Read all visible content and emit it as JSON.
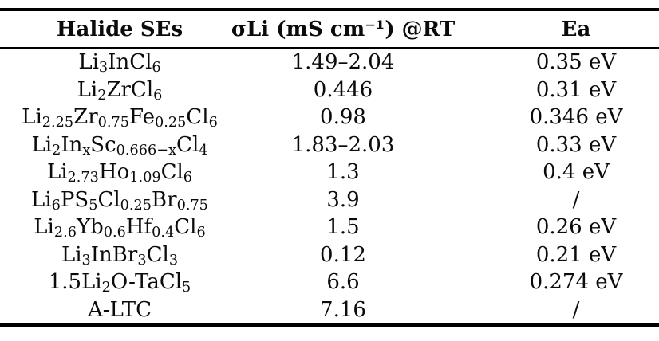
{
  "colors": {
    "background": "#ffffff",
    "text": "#0b0b0b",
    "rule": "#000000"
  },
  "table": {
    "headers": [
      "Halide SEs",
      "σLi (mS cm⁻¹) @RT",
      "Ea"
    ],
    "rows": [
      {
        "formula": [
          [
            "t",
            "Li"
          ],
          [
            "s",
            "3"
          ],
          [
            "t",
            "InCl"
          ],
          [
            "s",
            "6"
          ]
        ],
        "sigma": "1.49–2.04",
        "ea": "0.35 eV"
      },
      {
        "formula": [
          [
            "t",
            "Li"
          ],
          [
            "s",
            "2"
          ],
          [
            "t",
            "ZrCl"
          ],
          [
            "s",
            "6"
          ]
        ],
        "sigma": "0.446",
        "ea": "0.31 eV"
      },
      {
        "formula": [
          [
            "t",
            "Li"
          ],
          [
            "s",
            "2.25"
          ],
          [
            "t",
            "Zr"
          ],
          [
            "s",
            "0.75"
          ],
          [
            "t",
            "Fe"
          ],
          [
            "s",
            "0.25"
          ],
          [
            "t",
            "Cl"
          ],
          [
            "s",
            "6"
          ]
        ],
        "sigma": "0.98",
        "ea": "0.346 eV"
      },
      {
        "formula": [
          [
            "t",
            "Li"
          ],
          [
            "s",
            "2"
          ],
          [
            "t",
            "In"
          ],
          [
            "s",
            "x"
          ],
          [
            "t",
            "Sc"
          ],
          [
            "s",
            "0.666−x"
          ],
          [
            "t",
            "Cl"
          ],
          [
            "s",
            "4"
          ]
        ],
        "sigma": "1.83–2.03",
        "ea": "0.33 eV"
      },
      {
        "formula": [
          [
            "t",
            "Li"
          ],
          [
            "s",
            "2.73"
          ],
          [
            "t",
            "Ho"
          ],
          [
            "s",
            "1.09"
          ],
          [
            "t",
            "Cl"
          ],
          [
            "s",
            "6"
          ]
        ],
        "sigma": "1.3",
        "ea": "0.4 eV"
      },
      {
        "formula": [
          [
            "t",
            "Li"
          ],
          [
            "s",
            "6"
          ],
          [
            "t",
            "PS"
          ],
          [
            "s",
            "5"
          ],
          [
            "t",
            "Cl"
          ],
          [
            "s",
            "0.25"
          ],
          [
            "t",
            "Br"
          ],
          [
            "s",
            "0.75"
          ]
        ],
        "sigma": "3.9",
        "ea": "/"
      },
      {
        "formula": [
          [
            "t",
            "Li"
          ],
          [
            "s",
            "2.6"
          ],
          [
            "t",
            "Yb"
          ],
          [
            "s",
            "0.6"
          ],
          [
            "t",
            "Hf"
          ],
          [
            "s",
            "0.4"
          ],
          [
            "t",
            "Cl"
          ],
          [
            "s",
            "6"
          ]
        ],
        "sigma": "1.5",
        "ea": "0.26 eV"
      },
      {
        "formula": [
          [
            "t",
            "Li"
          ],
          [
            "s",
            "3"
          ],
          [
            "t",
            "InBr"
          ],
          [
            "s",
            "3"
          ],
          [
            "t",
            "Cl"
          ],
          [
            "s",
            "3"
          ]
        ],
        "sigma": "0.12",
        "ea": "0.21 eV"
      },
      {
        "formula": [
          [
            "t",
            "1.5Li"
          ],
          [
            "s",
            "2"
          ],
          [
            "t",
            "O-TaCl"
          ],
          [
            "s",
            "5"
          ]
        ],
        "sigma": "6.6",
        "ea": "0.274 eV"
      },
      {
        "formula": [
          [
            "t",
            "A-LTC"
          ]
        ],
        "sigma": "7.16",
        "ea": "/"
      }
    ]
  }
}
